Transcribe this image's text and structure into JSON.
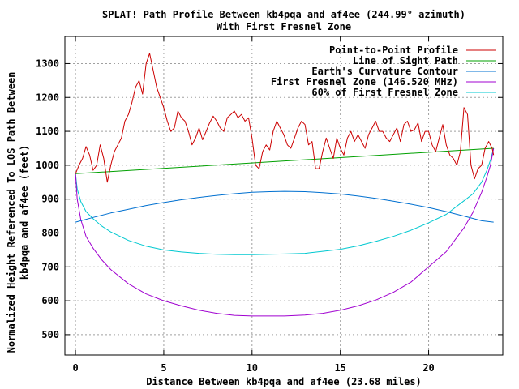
{
  "chart_data": {
    "type": "line",
    "title": "SPLAT! Path Profile Between kb4pqa and af4ee (244.99° azimuth)",
    "subtitle": "With First Fresnel Zone",
    "xlabel": "Distance Between kb4pqa and af4ee (23.68 miles)",
    "ylabel": [
      "Normalized Height Referenced To LOS Path Between",
      "kb4pqa and af4ee (feet)"
    ],
    "xlim": [
      -0.6,
      24.2
    ],
    "ylim": [
      440,
      1380
    ],
    "x_ticks": [
      0,
      5,
      10,
      15,
      20
    ],
    "y_ticks": [
      500,
      600,
      700,
      800,
      900,
      1000,
      1100,
      1200,
      1300
    ],
    "grid": true,
    "legend_position": "top-right",
    "series": [
      {
        "name": "Point-to-Point Profile",
        "color": "#cc0000",
        "x": [
          0,
          0.2,
          0.4,
          0.6,
          0.8,
          1.0,
          1.2,
          1.4,
          1.6,
          1.8,
          2.0,
          2.2,
          2.4,
          2.6,
          2.8,
          3.0,
          3.2,
          3.4,
          3.6,
          3.8,
          4.0,
          4.2,
          4.4,
          4.6,
          4.8,
          5.0,
          5.2,
          5.4,
          5.6,
          5.8,
          6.0,
          6.2,
          6.4,
          6.6,
          6.8,
          7.0,
          7.2,
          7.4,
          7.6,
          7.8,
          8.0,
          8.2,
          8.4,
          8.6,
          8.8,
          9.0,
          9.2,
          9.4,
          9.6,
          9.8,
          10.0,
          10.2,
          10.4,
          10.6,
          10.8,
          11.0,
          11.2,
          11.4,
          11.6,
          11.8,
          12.0,
          12.2,
          12.4,
          12.6,
          12.8,
          13.0,
          13.2,
          13.4,
          13.6,
          13.8,
          14.0,
          14.2,
          14.4,
          14.6,
          14.8,
          15.0,
          15.2,
          15.4,
          15.6,
          15.8,
          16.0,
          16.2,
          16.4,
          16.6,
          16.8,
          17.0,
          17.2,
          17.4,
          17.6,
          17.8,
          18.0,
          18.2,
          18.4,
          18.6,
          18.8,
          19.0,
          19.2,
          19.4,
          19.6,
          19.8,
          20.0,
          20.2,
          20.4,
          20.6,
          20.8,
          21.0,
          21.2,
          21.4,
          21.6,
          21.8,
          22.0,
          22.2,
          22.4,
          22.6,
          22.8,
          23.0,
          23.2,
          23.4,
          23.6,
          23.68
        ],
        "y": [
          975,
          1000,
          1020,
          1055,
          1030,
          985,
          1000,
          1060,
          1020,
          950,
          1000,
          1040,
          1060,
          1080,
          1130,
          1150,
          1185,
          1230,
          1250,
          1210,
          1300,
          1330,
          1280,
          1230,
          1200,
          1170,
          1130,
          1100,
          1110,
          1160,
          1140,
          1130,
          1100,
          1060,
          1080,
          1110,
          1075,
          1100,
          1125,
          1145,
          1130,
          1110,
          1100,
          1140,
          1150,
          1160,
          1140,
          1150,
          1130,
          1140,
          1080,
          1000,
          990,
          1040,
          1060,
          1045,
          1100,
          1130,
          1110,
          1090,
          1060,
          1050,
          1080,
          1110,
          1130,
          1120,
          1060,
          1070,
          990,
          990,
          1040,
          1080,
          1050,
          1020,
          1080,
          1050,
          1030,
          1080,
          1100,
          1070,
          1090,
          1070,
          1050,
          1090,
          1110,
          1130,
          1100,
          1100,
          1080,
          1070,
          1090,
          1110,
          1070,
          1120,
          1130,
          1100,
          1105,
          1125,
          1070,
          1100,
          1100,
          1060,
          1040,
          1080,
          1120,
          1060,
          1030,
          1020,
          1000,
          1040,
          1170,
          1150,
          1000,
          960,
          990,
          1000,
          1050,
          1070,
          1050,
          1030
        ]
      },
      {
        "name": "Line of Sight Path",
        "color": "#00a000",
        "x": [
          0,
          23.68
        ],
        "y": [
          975,
          1050
        ]
      },
      {
        "name": "Earth's Curvature Contour",
        "color": "#0070d0",
        "x": [
          0,
          1,
          2,
          3,
          4,
          5,
          6,
          7,
          8,
          9,
          10,
          11,
          11.84,
          13,
          14,
          15,
          16,
          17,
          18,
          19,
          20,
          21,
          22,
          23,
          23.68
        ],
        "y": [
          832,
          846,
          859,
          870,
          881,
          890,
          898,
          905,
          911,
          916,
          920,
          922,
          923,
          922,
          919,
          915,
          909,
          902,
          894,
          885,
          875,
          863,
          850,
          836,
          832
        ]
      },
      {
        "name": "First Fresnel Zone (146.520 MHz)",
        "color": "#a000d0",
        "x": [
          0,
          0.1,
          0.3,
          0.6,
          1.0,
          1.5,
          2,
          3,
          4,
          5,
          6,
          7,
          8,
          9,
          10,
          11,
          11.84,
          13,
          14,
          15,
          16,
          17,
          18,
          19,
          20,
          21,
          22,
          22.5,
          23,
          23.3,
          23.5,
          23.68
        ],
        "y": [
          975,
          900,
          840,
          790,
          755,
          720,
          692,
          650,
          620,
          600,
          585,
          572,
          563,
          557,
          555,
          555,
          555,
          558,
          563,
          572,
          585,
          602,
          625,
          655,
          700,
          745,
          815,
          860,
          920,
          965,
          1000,
          1050
        ]
      },
      {
        "name": "60% of First Fresnel Zone",
        "color": "#00c8d0",
        "x": [
          0,
          0.1,
          0.3,
          0.6,
          1.0,
          1.5,
          2,
          3,
          4,
          5,
          6,
          7,
          8,
          9,
          10,
          11,
          11.84,
          13,
          14,
          15,
          16,
          17,
          18,
          19,
          20,
          21,
          22,
          22.5,
          23,
          23.3,
          23.5,
          23.68
        ],
        "y": [
          975,
          930,
          893,
          863,
          842,
          820,
          803,
          778,
          761,
          750,
          744,
          740,
          737,
          736,
          736,
          737,
          738,
          740,
          746,
          752,
          762,
          775,
          790,
          808,
          830,
          855,
          895,
          915,
          950,
          985,
          1015,
          1050
        ]
      }
    ]
  }
}
